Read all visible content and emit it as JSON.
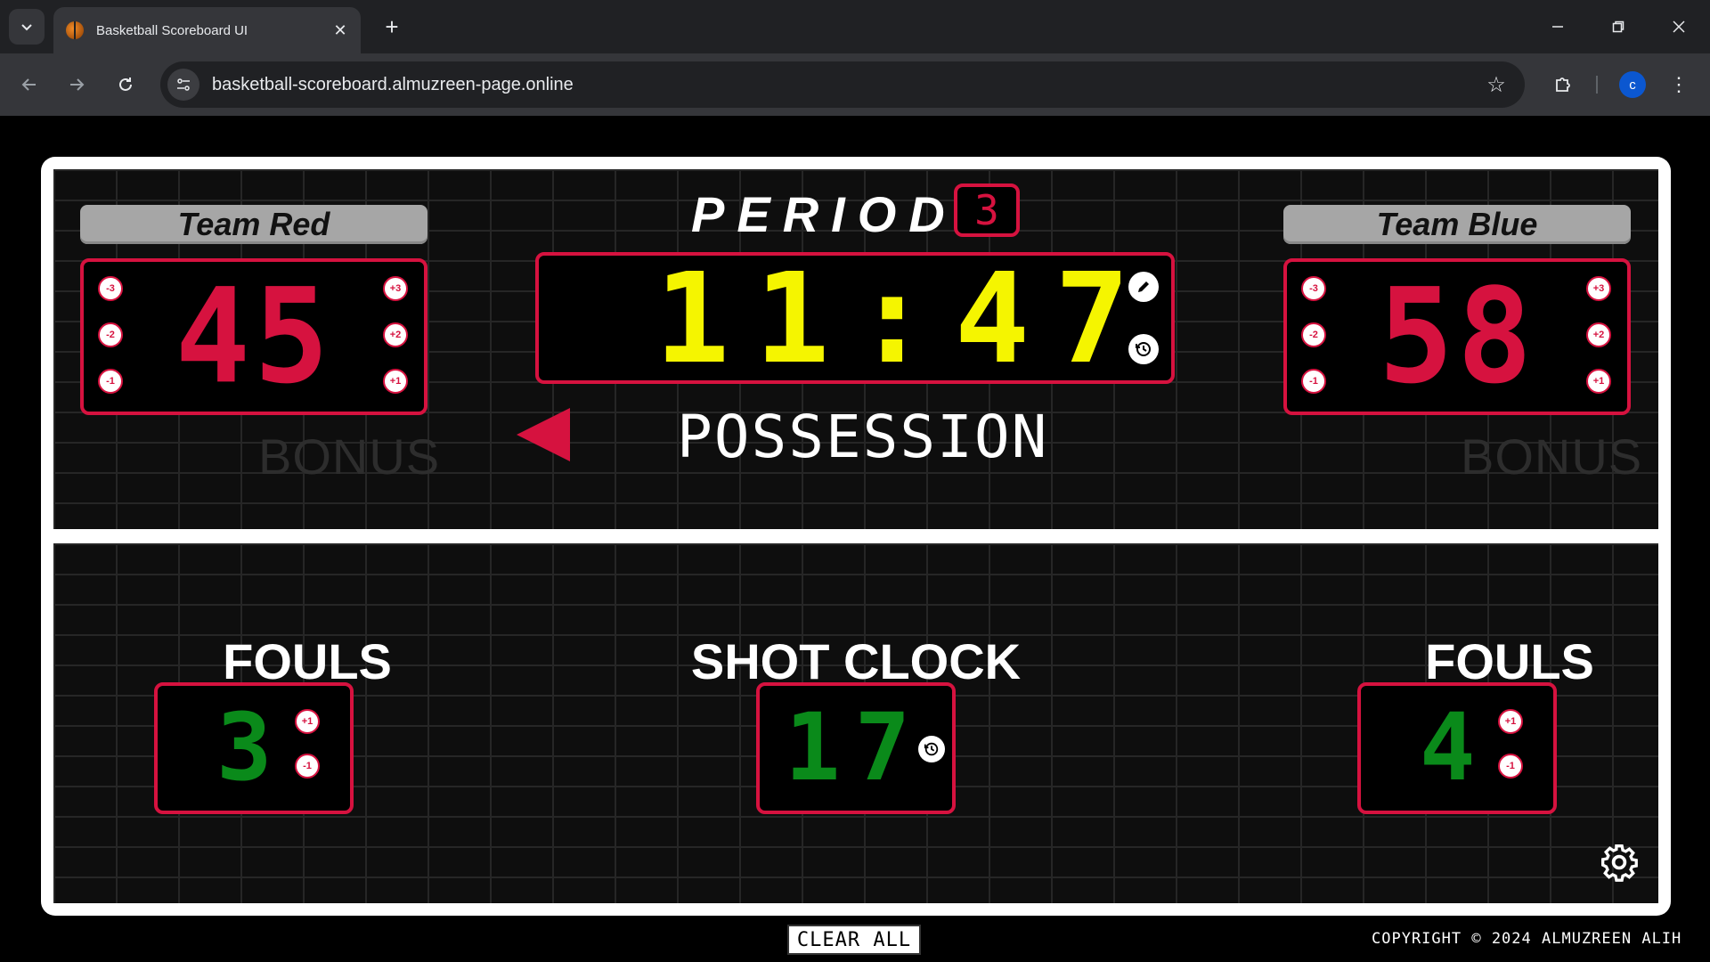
{
  "browser": {
    "tab_title": "Basketball Scoreboard UI",
    "url": "basketball-scoreboard.almuzreen-page.online",
    "profile_initial": "c"
  },
  "scoreboard": {
    "period_label": "PERIOD",
    "period": "3",
    "game_clock": "11:47",
    "possession_label": "POSSESSION",
    "possession_team": "red",
    "bonus_label": "BONUS",
    "fouls_label": "FOULS",
    "shot_clock_label": "SHOT CLOCK",
    "shot_clock": "17",
    "home": {
      "name": "Team Red",
      "score": "45",
      "fouls": "3",
      "minus_buttons": [
        "-3",
        "-2",
        "-1"
      ],
      "plus_buttons": [
        "+3",
        "+2",
        "+1"
      ],
      "foul_plus": "+1",
      "foul_minus": "-1"
    },
    "away": {
      "name": "Team Blue",
      "score": "58",
      "fouls": "4",
      "minus_buttons": [
        "-3",
        "-2",
        "-1"
      ],
      "plus_buttons": [
        "+3",
        "+2",
        "+1"
      ],
      "foul_plus": "+1",
      "foul_minus": "-1"
    }
  },
  "footer": {
    "clear_all": "CLEAR ALL",
    "copyright": "COPYRIGHT © 2024 ALMUZREEN ALIH"
  },
  "colors": {
    "accent_red": "#d6123f",
    "clock_yellow": "#f5f500",
    "digit_green": "#0a8a1a",
    "team_name_bg": "#a6a6a6"
  }
}
